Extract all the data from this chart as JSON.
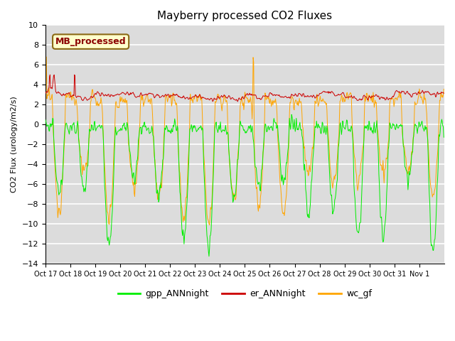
{
  "title": "Mayberry processed CO2 Fluxes",
  "ylabel": "CO2 Flux (urology/m2/s)",
  "ylim": [
    -14,
    10
  ],
  "yticks": [
    -14,
    -12,
    -10,
    -8,
    -6,
    -4,
    -2,
    0,
    2,
    4,
    6,
    8,
    10
  ],
  "bg_color": "#dcdcdc",
  "grid_color": "white",
  "color_gpp": "#00ee00",
  "color_er": "#cc0000",
  "color_wc": "#ffa500",
  "legend_labels": [
    "gpp_ANNnight",
    "er_ANNnight",
    "wc_gf"
  ],
  "mb_label": "MB_processed",
  "mb_box_color": "#ffffcc",
  "mb_text_color": "#8b0000",
  "mb_border_color": "#8b6914",
  "n_days": 16,
  "n_per_day": 48,
  "xtick_labels": [
    "Oct 17",
    "Oct 18",
    "Oct 19",
    "Oct 20",
    "Oct 21",
    "Oct 22",
    "Oct 23",
    "Oct 24",
    "Oct 25",
    "Oct 26",
    "Oct 27",
    "Oct 28",
    "Oct 29",
    "Oct 30",
    "Oct 31",
    "Nov 1"
  ],
  "figsize": [
    6.4,
    4.8
  ],
  "dpi": 100
}
